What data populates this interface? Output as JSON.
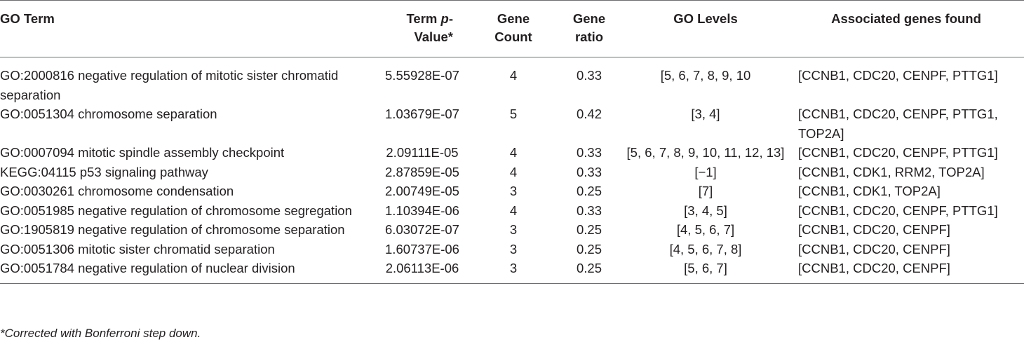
{
  "table": {
    "headers": {
      "term": "GO Term",
      "pvalue_pre": "Term ",
      "pvalue_italic": "p",
      "pvalue_post": "-Value*",
      "gene_count": "Gene Count",
      "gene_ratio": "Gene ratio",
      "go_levels": "GO Levels",
      "genes": "Associated genes found"
    },
    "rows": [
      {
        "term": "GO:2000816 negative regulation of mitotic sister chromatid separation",
        "pvalue": "5.55928E-07",
        "count": "4",
        "ratio": "0.33",
        "levels": "[5, 6, 7, 8, 9, 10",
        "genes": "[CCNB1, CDC20, CENPF, PTTG1]"
      },
      {
        "term": "GO:0051304 chromosome separation",
        "pvalue": "1.03679E-07",
        "count": "5",
        "ratio": "0.42",
        "levels": "[3, 4]",
        "genes": "[CCNB1, CDC20, CENPF, PTTG1, TOP2A]"
      },
      {
        "term": "GO:0007094 mitotic spindle assembly checkpoint",
        "pvalue": "2.09111E-05",
        "count": "4",
        "ratio": "0.33",
        "levels": "[5, 6, 7, 8, 9, 10, 11, 12, 13]",
        "genes": "[CCNB1, CDC20, CENPF, PTTG1]"
      },
      {
        "term": "KEGG:04115 p53 signaling pathway",
        "pvalue": "2.87859E-05",
        "count": "4",
        "ratio": "0.33",
        "levels": "[−1]",
        "genes": "[CCNB1, CDK1, RRM2, TOP2A]"
      },
      {
        "term": "GO:0030261 chromosome condensation",
        "pvalue": "2.00749E-05",
        "count": "3",
        "ratio": "0.25",
        "levels": "[7]",
        "genes": "[CCNB1, CDK1, TOP2A]"
      },
      {
        "term": "GO:0051985 negative regulation of chromosome segregation",
        "pvalue": "1.10394E-06",
        "count": "4",
        "ratio": "0.33",
        "levels": "[3, 4, 5]",
        "genes": "[CCNB1, CDC20, CENPF, PTTG1]"
      },
      {
        "term": "GO:1905819 negative regulation of chromosome separation",
        "pvalue": "6.03072E-07",
        "count": "3",
        "ratio": "0.25",
        "levels": "[4, 5, 6, 7]",
        "genes": "[CCNB1, CDC20, CENPF]"
      },
      {
        "term": "GO:0051306 mitotic sister chromatid separation",
        "pvalue": "1.60737E-06",
        "count": "3",
        "ratio": "0.25",
        "levels": "[4, 5, 6, 7, 8]",
        "genes": "[CCNB1, CDC20, CENPF]"
      },
      {
        "term": "GO:0051784 negative regulation of nuclear division",
        "pvalue": "2.06113E-06",
        "count": "3",
        "ratio": "0.25",
        "levels": "[5, 6, 7]",
        "genes": "[CCNB1, CDC20, CENPF]"
      }
    ]
  },
  "footnote": "*Corrected with Bonferroni step down."
}
